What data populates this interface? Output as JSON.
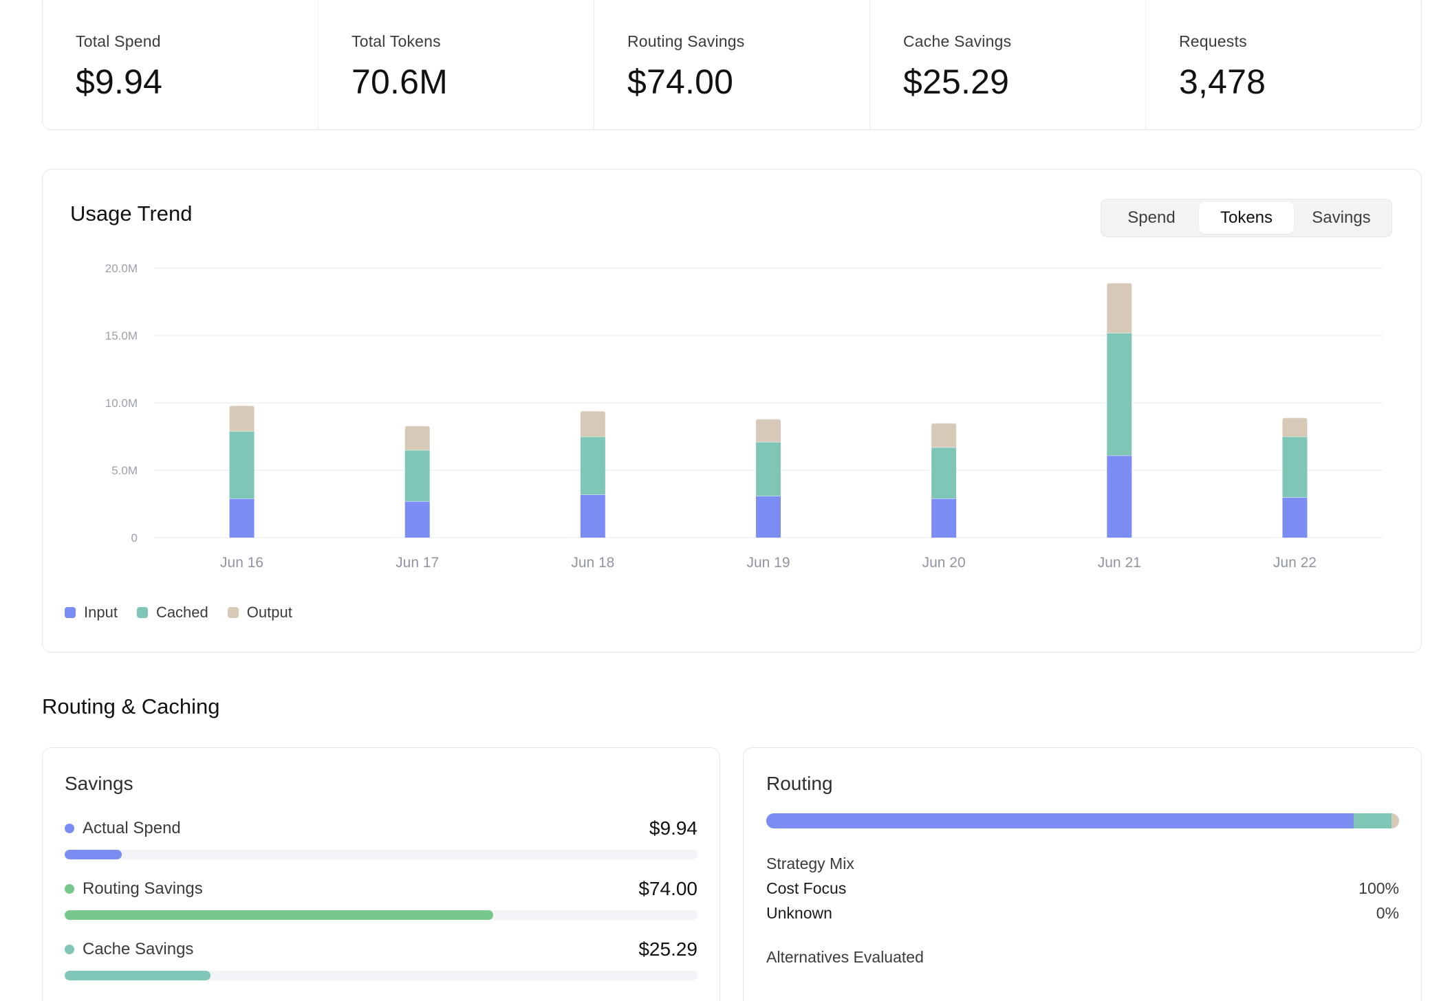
{
  "kpis": [
    {
      "label": "Total Spend",
      "value": "$9.94"
    },
    {
      "label": "Total Tokens",
      "value": "70.6M"
    },
    {
      "label": "Routing Savings",
      "value": "$74.00"
    },
    {
      "label": "Cache Savings",
      "value": "$25.29"
    },
    {
      "label": "Requests",
      "value": "3,478"
    }
  ],
  "usage_trend": {
    "title": "Usage Trend",
    "tabs": [
      {
        "label": "Spend",
        "active": false
      },
      {
        "label": "Tokens",
        "active": true
      },
      {
        "label": "Savings",
        "active": false
      }
    ],
    "legend": [
      {
        "label": "Input",
        "color": "#7b8cf3"
      },
      {
        "label": "Cached",
        "color": "#7fc6b6"
      },
      {
        "label": "Output",
        "color": "#d7c9b8"
      }
    ]
  },
  "chart_data": {
    "type": "bar",
    "stacked": true,
    "categories": [
      "Jun 16",
      "Jun 17",
      "Jun 18",
      "Jun 19",
      "Jun 20",
      "Jun 21",
      "Jun 22"
    ],
    "series": [
      {
        "name": "Input",
        "color": "#7b8cf3",
        "values": [
          2.9,
          2.7,
          3.2,
          3.1,
          2.9,
          6.1,
          3.0
        ]
      },
      {
        "name": "Cached",
        "color": "#7fc6b6",
        "values": [
          5.0,
          3.8,
          4.3,
          4.0,
          3.8,
          9.1,
          4.5
        ]
      },
      {
        "name": "Output",
        "color": "#d7c9b8",
        "values": [
          1.9,
          1.8,
          1.9,
          1.7,
          1.8,
          3.7,
          1.4
        ]
      }
    ],
    "ylim": [
      0,
      20
    ],
    "y_ticks": [
      0,
      5,
      10,
      15,
      20
    ],
    "y_tick_labels": [
      "0",
      "5.0M",
      "10.0M",
      "15.0M",
      "20.0M"
    ],
    "grid": true,
    "legend_position": "bottom-left"
  },
  "section_title": "Routing & Caching",
  "savings": {
    "title": "Savings",
    "rows": [
      {
        "label": "Actual Spend",
        "value": "$9.94",
        "color": "#7b8cf3",
        "fraction": 0.09
      },
      {
        "label": "Routing Savings",
        "value": "$74.00",
        "color": "#77c88d",
        "fraction": 0.677
      },
      {
        "label": "Cache Savings",
        "value": "$25.29",
        "color": "#7fc6b6",
        "fraction": 0.23
      }
    ]
  },
  "routing": {
    "title": "Routing",
    "bar": [
      {
        "color": "#7b8cf3",
        "fraction": 0.95
      },
      {
        "color": "#7fc6b6",
        "fraction": 0.062
      },
      {
        "color": "#d7c9b8",
        "fraction": 0.012
      }
    ],
    "strategy_mix_title": "Strategy Mix",
    "strategy_mix": [
      {
        "label": "Cost Focus",
        "value": "100%"
      },
      {
        "label": "Unknown",
        "value": "0%"
      }
    ],
    "alternatives_title": "Alternatives Evaluated"
  }
}
